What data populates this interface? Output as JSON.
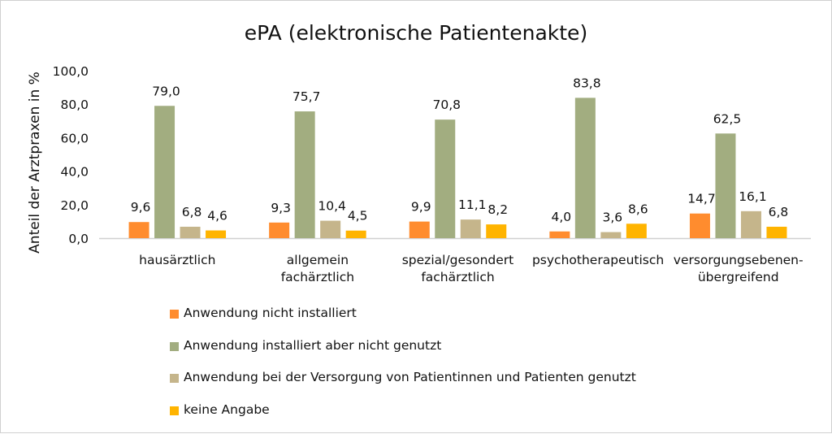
{
  "chart_data": {
    "type": "bar",
    "title": "ePA (elektronische Patientenakte)",
    "xlabel": "",
    "ylabel": "Anteil der Arztpraxen in %",
    "ylim": [
      0,
      100
    ],
    "yticks": [
      "0,0",
      "20,0",
      "40,0",
      "60,0",
      "80,0",
      "100,0"
    ],
    "grid": false,
    "legend_position": "bottom",
    "categories": [
      [
        "hausärztlich"
      ],
      [
        "allgemein",
        "fachärztlich"
      ],
      [
        "spezial/gesondert",
        "fachärztlich"
      ],
      [
        "psychotherapeutisch"
      ],
      [
        "versorgungsebenen-",
        "übergreifend"
      ]
    ],
    "series": [
      {
        "name": "Anwendung nicht installiert",
        "color": "#FF8C2E",
        "values": [
          9.6,
          9.3,
          9.9,
          4.0,
          14.7
        ],
        "labels": [
          "9,6",
          "9,3",
          "9,9",
          "4,0",
          "14,7"
        ]
      },
      {
        "name": "Anwendung installiert aber nicht genutzt",
        "color": "#A2AD80",
        "values": [
          79.0,
          75.7,
          70.8,
          83.8,
          62.5
        ],
        "labels": [
          "79,0",
          "75,7",
          "70,8",
          "83,8",
          "62,5"
        ]
      },
      {
        "name": "Anwendung bei der Versorgung von Patientinnen und Patienten genutzt",
        "color": "#C5B58B",
        "values": [
          6.8,
          10.4,
          11.1,
          3.6,
          16.1
        ],
        "labels": [
          "6,8",
          "10,4",
          "11,1",
          "3,6",
          "16,1"
        ]
      },
      {
        "name": "keine Angabe",
        "color": "#FFB400",
        "values": [
          4.6,
          4.5,
          8.2,
          8.6,
          6.8
        ],
        "labels": [
          "4,6",
          "4,5",
          "8,2",
          "8,6",
          "6,8"
        ]
      }
    ]
  }
}
